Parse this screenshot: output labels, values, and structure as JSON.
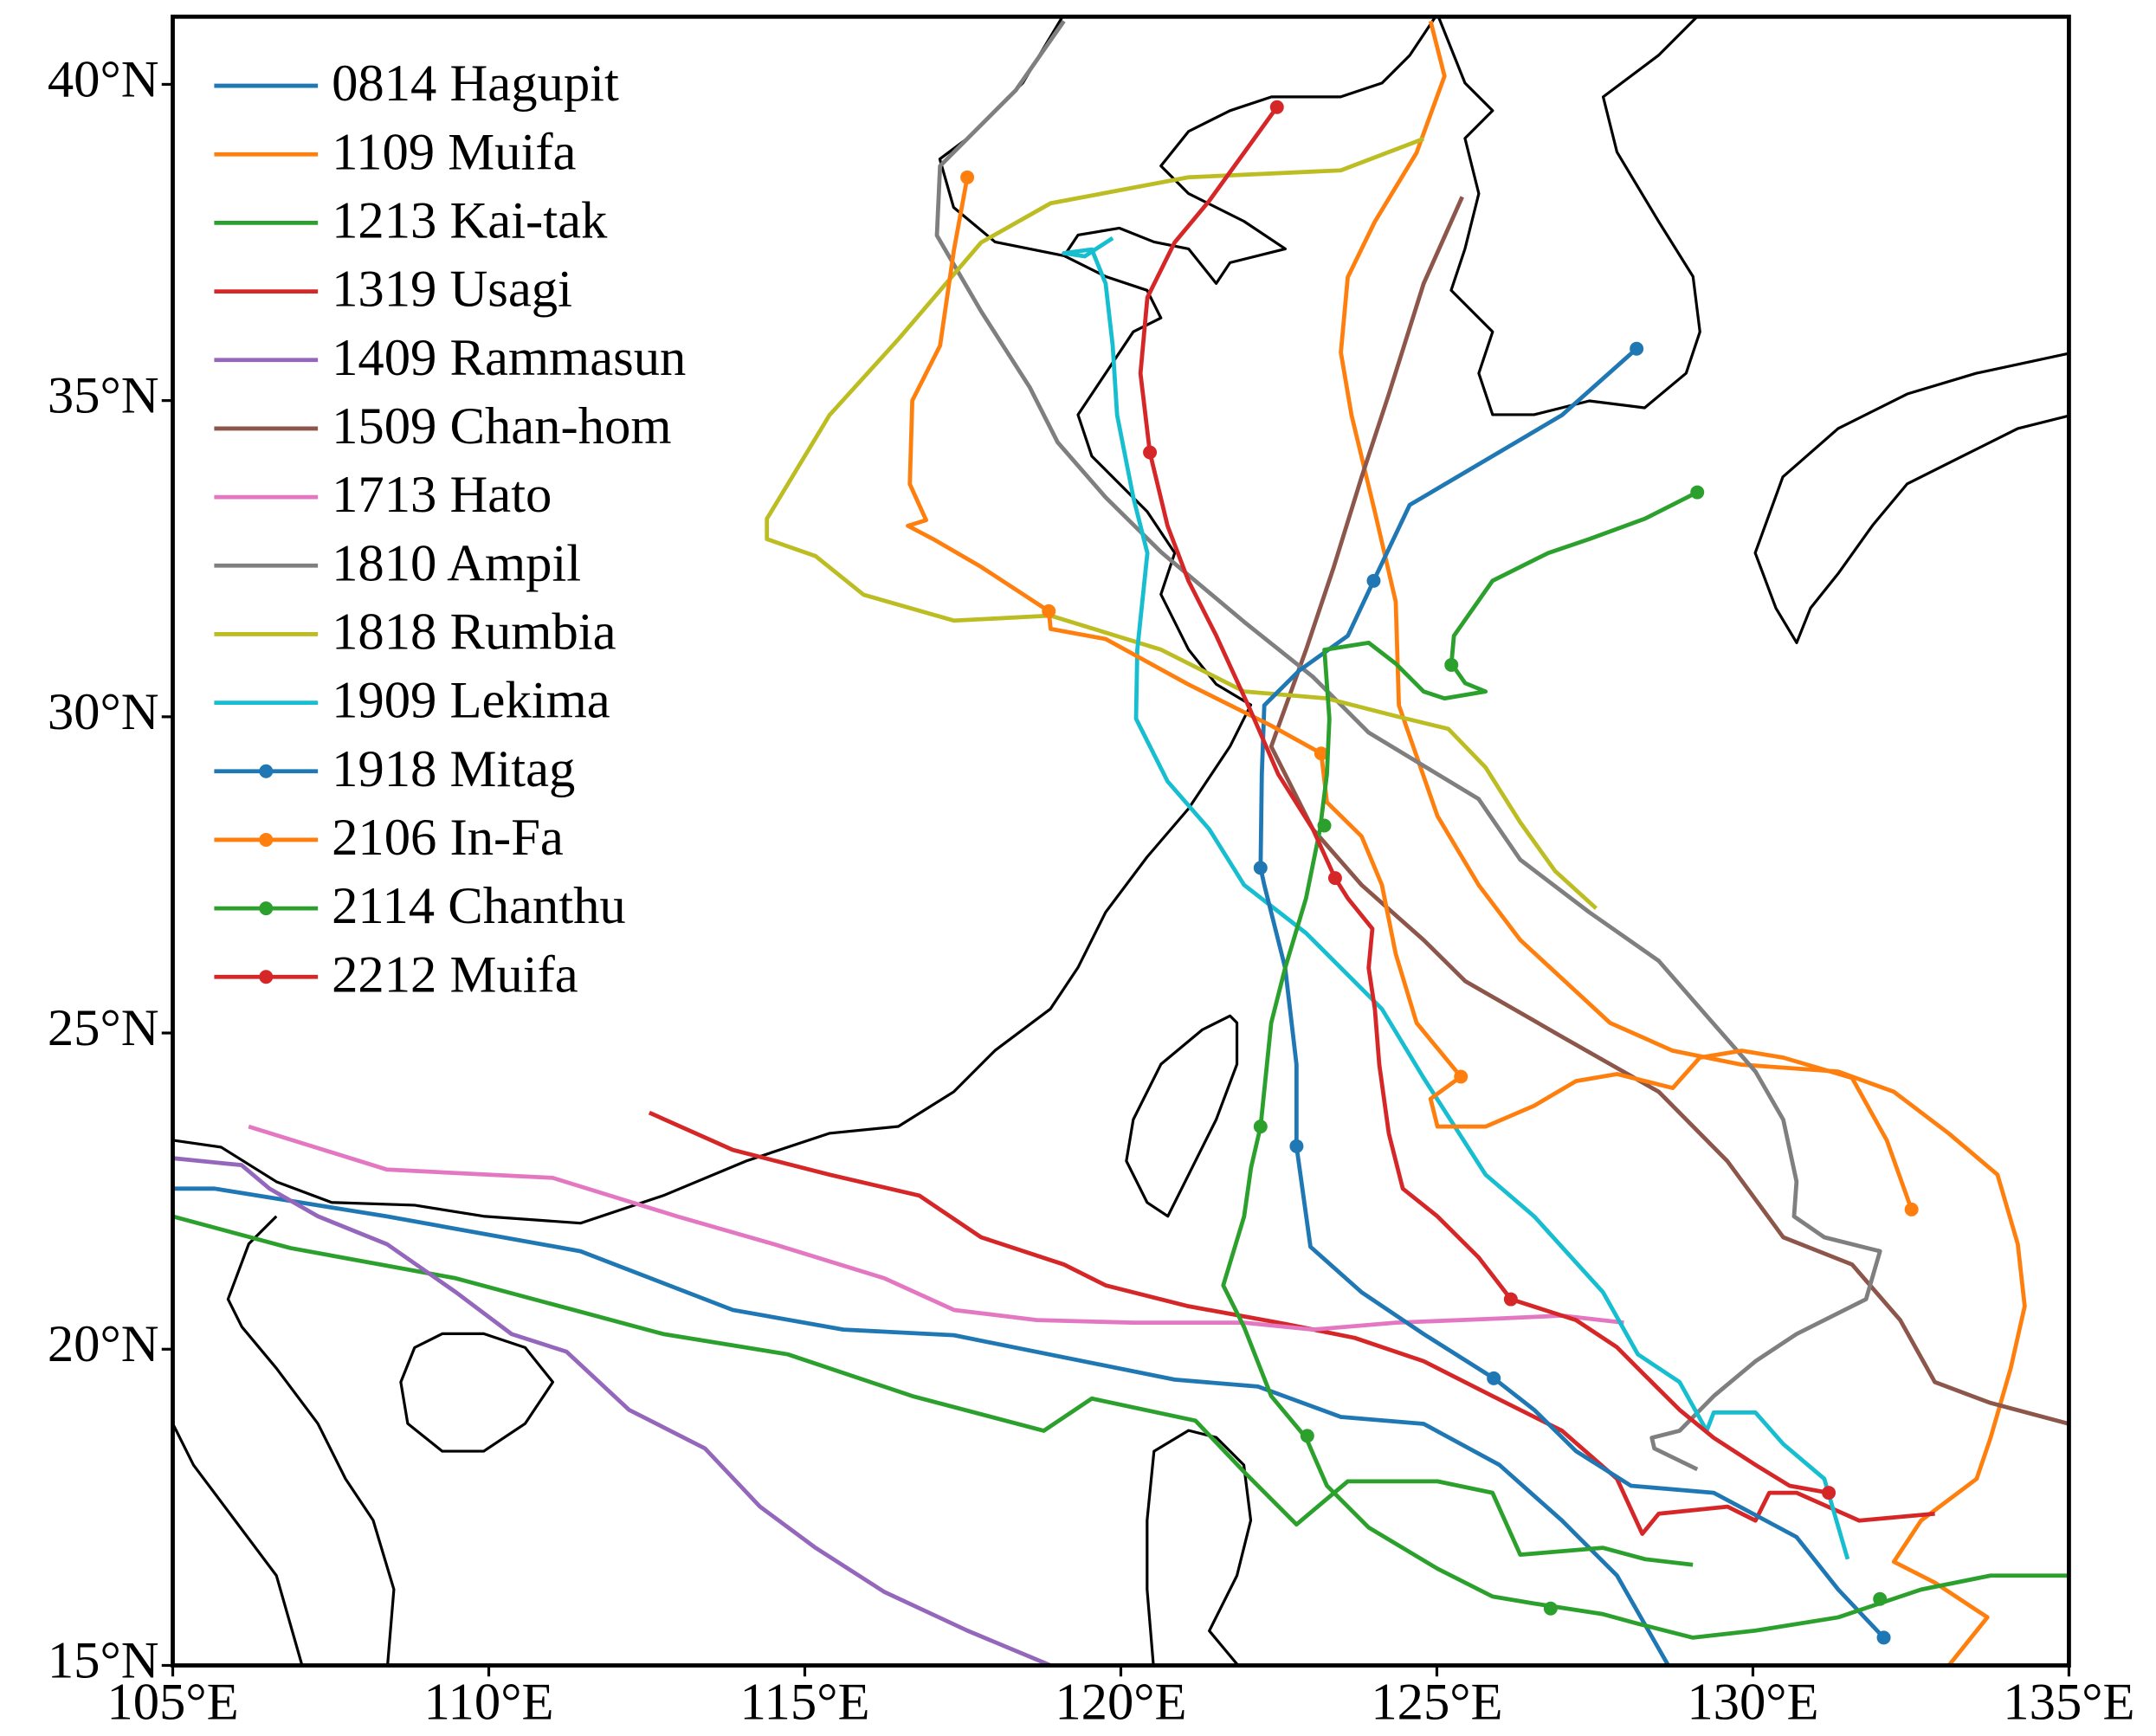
{
  "chart_data": {
    "type": "line",
    "xlim": [
      105,
      135
    ],
    "ylim": [
      15,
      41.07
    ],
    "xticks": [
      {
        "value": 105,
        "label": "105°E"
      },
      {
        "value": 110,
        "label": "110°E"
      },
      {
        "value": 115,
        "label": "115°E"
      },
      {
        "value": 120,
        "label": "120°E"
      },
      {
        "value": 125,
        "label": "125°E"
      },
      {
        "value": 130,
        "label": "130°E"
      },
      {
        "value": 135,
        "label": "135°E"
      }
    ],
    "yticks": [
      {
        "value": 15,
        "label": "15°N"
      },
      {
        "value": 20,
        "label": "20°N"
      },
      {
        "value": 25,
        "label": "25°N"
      },
      {
        "value": 30,
        "label": "30°N"
      },
      {
        "value": 35,
        "label": "35°N"
      },
      {
        "value": 40,
        "label": "40°N"
      }
    ],
    "legend": "upper left",
    "series": [
      {
        "name": "0814 Hagupit",
        "color": "#1f77b4",
        "x": [
          105.0,
          105.66,
          108.39,
          111.45,
          113.86,
          115.61,
          117.36,
          120.85,
          122.17,
          123.48,
          124.79,
          125.99,
          126.98,
          127.85,
          128.66
        ],
        "values": [
          22.54,
          22.54,
          22.1,
          21.55,
          20.62,
          20.31,
          20.22,
          19.52,
          19.41,
          18.93,
          18.82,
          18.17,
          17.29,
          16.42,
          15.0
        ]
      },
      {
        "name": "1109 Muifa",
        "color": "#ff7f0e",
        "x": [
          124.9,
          125.12,
          124.68,
          124.02,
          123.59,
          123.48,
          123.65,
          124.02,
          124.35,
          124.4,
          125.01,
          125.66,
          126.32,
          127.74,
          128.73,
          129.82,
          131.35,
          132.23,
          133.1,
          133.87,
          134.19,
          134.3,
          134.08,
          133.76,
          133.54,
          132.66,
          132.23,
          132.88,
          133.71,
          133.1
        ],
        "values": [
          41.0,
          40.13,
          38.92,
          37.83,
          36.95,
          35.76,
          34.77,
          33.24,
          31.82,
          30.18,
          28.43,
          27.34,
          26.47,
          25.16,
          24.72,
          24.5,
          24.39,
          24.07,
          23.41,
          22.76,
          21.66,
          20.68,
          19.7,
          18.6,
          17.95,
          17.29,
          16.64,
          16.31,
          15.76,
          15.0
        ]
      },
      {
        "name": "1213 Kai-tak",
        "color": "#2ca02c",
        "x": [
          105.0,
          106.86,
          109.48,
          112.76,
          114.73,
          116.7,
          118.78,
          119.54,
          121.18,
          121.95,
          122.78,
          123.59,
          125.01,
          125.88,
          126.32,
          127.63,
          128.29,
          129.05
        ],
        "values": [
          22.1,
          21.6,
          21.12,
          20.24,
          19.92,
          19.26,
          18.71,
          19.22,
          18.87,
          18.06,
          17.23,
          17.91,
          17.91,
          17.73,
          16.75,
          16.86,
          16.68,
          16.59
        ]
      },
      {
        "name": "1319 Usagi",
        "color": "#d62728",
        "x": [
          112.54,
          113.86,
          115.39,
          116.81,
          117.79,
          119.1,
          119.76,
          121.07,
          122.6,
          123.7,
          124.79,
          125.88,
          126.98,
          127.85,
          128.25,
          128.51,
          129.6,
          130.04,
          130.26,
          130.69,
          131.68,
          132.88
        ],
        "values": [
          23.74,
          23.15,
          22.76,
          22.43,
          21.77,
          21.34,
          21.01,
          20.68,
          20.4,
          20.18,
          19.81,
          19.26,
          18.71,
          17.95,
          17.08,
          17.4,
          17.51,
          17.29,
          17.73,
          17.73,
          17.29,
          17.4
        ]
      },
      {
        "name": "1409 Rammasun",
        "color": "#9467bd",
        "x": [
          105.0,
          106.09,
          106.53,
          107.3,
          108.39,
          109.48,
          110.36,
          111.23,
          112.22,
          113.42,
          114.29,
          115.17,
          116.26,
          117.57,
          118.89
        ],
        "values": [
          23.02,
          22.91,
          22.54,
          22.1,
          21.66,
          20.9,
          20.24,
          19.96,
          19.04,
          18.43,
          17.51,
          16.86,
          16.16,
          15.55,
          15.0
        ]
      },
      {
        "name": "1509 Chan-hom",
        "color": "#8c564b",
        "x": [
          125.4,
          124.79,
          124.24,
          123.81,
          123.37,
          122.93,
          122.38,
          123.04,
          123.81,
          124.79,
          125.45,
          126.98,
          128.51,
          129.6,
          130.48,
          131.57,
          132.33,
          132.88,
          133.76,
          135.0
        ],
        "values": [
          38.22,
          36.85,
          35.1,
          33.79,
          32.37,
          31.06,
          29.53,
          28.22,
          27.34,
          26.47,
          25.82,
          24.94,
          24.07,
          22.97,
          21.77,
          21.34,
          20.46,
          19.48,
          19.15,
          18.82
        ]
      },
      {
        "name": "1713 Hato",
        "color": "#e377c2",
        "x": [
          106.2,
          108.39,
          111.01,
          112.98,
          114.51,
          116.26,
          117.36,
          118.67,
          120.2,
          121.95,
          123.04,
          124.35,
          125.88,
          126.98,
          127.96
        ],
        "values": [
          23.52,
          22.84,
          22.71,
          22.1,
          21.66,
          21.12,
          20.62,
          20.46,
          20.42,
          20.42,
          20.31,
          20.42,
          20.48,
          20.53,
          20.42
        ]
      },
      {
        "name": "1810 Ampil",
        "color": "#7f7f7f",
        "x": [
          119.1,
          118.34,
          117.14,
          117.09,
          117.79,
          118.56,
          119.0,
          119.76,
          120.64,
          121.95,
          123.04,
          123.92,
          125.66,
          126.32,
          127.41,
          128.51,
          129.27,
          130.04,
          130.48,
          130.69,
          130.65,
          131.13,
          132.01,
          131.79,
          130.69,
          130.04,
          129.38,
          128.84,
          128.4,
          128.44,
          129.12
        ],
        "values": [
          41.0,
          39.91,
          38.71,
          37.61,
          36.41,
          35.21,
          34.34,
          33.47,
          32.6,
          31.5,
          30.63,
          29.75,
          28.7,
          27.74,
          26.91,
          26.14,
          25.27,
          24.39,
          23.63,
          22.65,
          22.1,
          21.77,
          21.55,
          20.79,
          20.24,
          19.81,
          19.26,
          18.71,
          18.6,
          18.43,
          18.1
        ]
      },
      {
        "name": "1818 Rumbia",
        "color": "#bcbd22",
        "x": [
          124.79,
          123.48,
          121.07,
          118.89,
          117.79,
          116.48,
          115.39,
          114.4,
          114.4,
          115.17,
          115.93,
          117.36,
          118.89,
          120.64,
          121.95,
          123.26,
          124.35,
          125.18,
          125.77,
          126.32,
          126.87,
          127.52
        ],
        "values": [
          39.14,
          38.64,
          38.53,
          38.12,
          37.5,
          35.97,
          34.77,
          33.13,
          32.81,
          32.54,
          31.93,
          31.52,
          31.6,
          31.06,
          30.4,
          30.29,
          30.01,
          29.81,
          29.2,
          28.33,
          27.56,
          26.97
        ]
      },
      {
        "name": "1909 Lekima",
        "color": "#17becf",
        "x": [
          131.5,
          131.13,
          130.48,
          130.04,
          129.38,
          129.27,
          128.84,
          128.18,
          127.63,
          126.54,
          125.77,
          124.79,
          124.13,
          122.93,
          121.95,
          121.4,
          120.74,
          120.24,
          120.26,
          120.42,
          120.2,
          119.94,
          119.87,
          119.76,
          119.54,
          119.1,
          119.43,
          119.87
        ],
        "values": [
          16.68,
          17.95,
          18.5,
          19.0,
          19.0,
          18.71,
          19.48,
          19.92,
          20.9,
          22.1,
          22.76,
          24.29,
          25.38,
          26.58,
          27.34,
          28.22,
          28.98,
          29.97,
          31.06,
          32.59,
          33.46,
          34.77,
          35.87,
          36.85,
          37.39,
          37.33,
          37.28,
          37.57
        ]
      },
      {
        "name": "1918 Mitag",
        "color": "#1f77b4",
        "x": [
          132.07,
          131.35,
          130.69,
          129.38,
          128.07,
          127.2,
          126.54,
          125.9,
          124.79,
          123.81,
          123.0,
          122.78,
          122.78,
          122.6,
          122.27,
          122.21,
          122.23,
          122.27,
          122.82,
          123.59,
          124.0,
          124.57,
          125.88,
          126.98,
          128.16
        ],
        "values": [
          15.44,
          16.2,
          17.03,
          17.73,
          17.84,
          18.39,
          19.04,
          19.54,
          20.24,
          20.9,
          21.62,
          23.21,
          24.5,
          26.03,
          27.34,
          27.61,
          29.09,
          30.18,
          30.73,
          31.28,
          32.15,
          33.35,
          34.12,
          34.77,
          35.82
        ],
        "markers": {
          "x": [
            132.07,
            125.9,
            122.78,
            122.21,
            124.0,
            128.16
          ],
          "values": [
            15.44,
            19.54,
            23.21,
            27.61,
            32.15,
            35.82
          ]
        }
      },
      {
        "name": "2106 In-Fa",
        "color": "#ff7f0e",
        "x": [
          132.51,
          132.12,
          131.57,
          130.48,
          129.82,
          129.16,
          128.73,
          127.85,
          127.2,
          126.54,
          125.77,
          125.01,
          124.9,
          125.38,
          124.68,
          124.35,
          124.13,
          123.81,
          123.26,
          123.17,
          122.38,
          121.07,
          119.76,
          118.89,
          118.86,
          117.79,
          117.03,
          116.63,
          116.92,
          116.66,
          116.7,
          117.14,
          117.36,
          117.57
        ],
        "values": [
          22.21,
          23.3,
          24.29,
          24.61,
          24.72,
          24.61,
          24.13,
          24.35,
          24.24,
          23.85,
          23.52,
          23.52,
          23.96,
          24.31,
          25.16,
          26.25,
          27.34,
          28.11,
          28.65,
          29.42,
          29.86,
          30.51,
          31.23,
          31.39,
          31.67,
          32.37,
          32.81,
          33.02,
          33.11,
          33.68,
          35.0,
          35.87,
          37.39,
          38.53
        ],
        "markers": {
          "x": [
            132.51,
            125.38,
            123.17,
            118.86,
            117.57
          ],
          "values": [
            22.21,
            24.31,
            29.42,
            31.67,
            38.53
          ]
        }
      },
      {
        "name": "2114 Chanthu",
        "color": "#2ca02c",
        "x": [
          135.0,
          133.76,
          132.66,
          131.35,
          130.04,
          129.05,
          128.18,
          127.63,
          126.54,
          125.88,
          125.01,
          123.92,
          123.26,
          122.93,
          122.38,
          121.95,
          121.62,
          121.95,
          122.06,
          122.21,
          122.38,
          122.6,
          122.93,
          123.15,
          123.26,
          123.3,
          123.22,
          123.92,
          124.35,
          124.79,
          125.12,
          125.77,
          125.45,
          125.23,
          125.27,
          125.88,
          126.76,
          127.41,
          128.29,
          129.12
        ],
        "values": [
          16.42,
          16.42,
          16.2,
          15.76,
          15.55,
          15.44,
          15.66,
          15.81,
          15.98,
          16.09,
          16.53,
          17.18,
          17.84,
          18.6,
          19.26,
          20.35,
          21.01,
          22.1,
          22.87,
          23.52,
          25.16,
          26.03,
          27.13,
          28.22,
          29.09,
          29.97,
          31.06,
          31.17,
          30.84,
          30.4,
          30.29,
          30.4,
          30.53,
          30.84,
          31.28,
          32.15,
          32.59,
          32.81,
          33.13,
          33.55
        ],
        "markers": {
          "x": [
            132.01,
            126.8,
            122.95,
            122.21,
            123.22,
            125.23,
            129.12
          ],
          "values": [
            16.05,
            15.9,
            18.63,
            23.52,
            28.28,
            30.82,
            33.55
          ]
        }
      },
      {
        "name": "2212 Muifa",
        "color": "#d62728",
        "x": [
          131.2,
          130.58,
          130.04,
          129.38,
          128.84,
          128.29,
          127.85,
          127.2,
          126.17,
          125.66,
          125.01,
          124.46,
          124.24,
          124.09,
          124.02,
          123.92,
          123.98,
          123.59,
          123.39,
          123.04,
          122.49,
          122.06,
          121.51,
          121.07,
          120.74,
          120.46,
          120.31,
          120.42,
          120.85,
          121.4,
          121.95,
          122.47
        ],
        "values": [
          17.73,
          17.84,
          18.17,
          18.6,
          19.04,
          19.59,
          20.03,
          20.46,
          20.79,
          21.45,
          22.1,
          22.54,
          23.41,
          24.5,
          25.38,
          26.03,
          26.65,
          27.13,
          27.45,
          28.22,
          29.09,
          30.08,
          31.28,
          32.15,
          33.02,
          34.18,
          35.43,
          36.63,
          37.5,
          38.16,
          38.92,
          39.64
        ],
        "markers": {
          "x": [
            131.2,
            126.17,
            123.39,
            120.46,
            122.47
          ],
          "values": [
            17.73,
            20.79,
            27.45,
            34.18,
            39.64
          ]
        }
      }
    ]
  }
}
